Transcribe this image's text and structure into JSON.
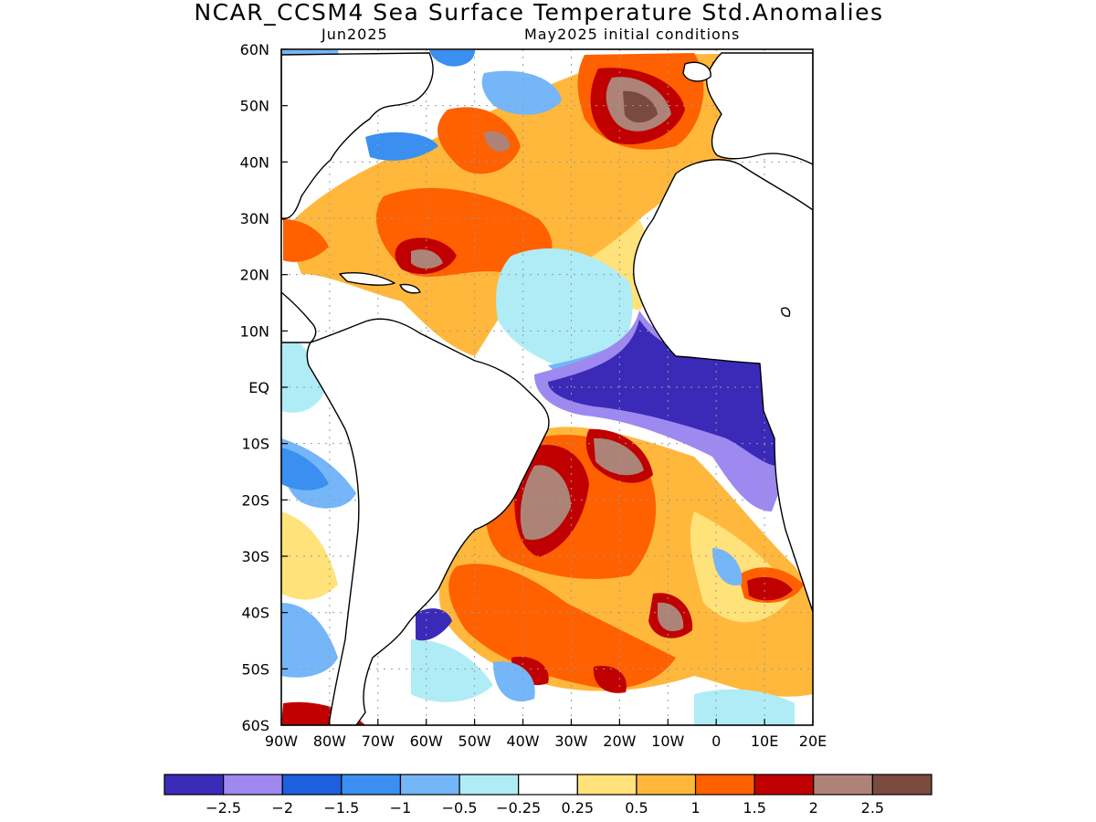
{
  "title": "NCAR_CCSM4 Sea Surface Temperature Std.Anomalies",
  "subtitle_left": "Jun2025",
  "subtitle_right": "May2025 initial conditions",
  "map": {
    "region": "Atlantic Ocean",
    "lon_range": [
      -90,
      20
    ],
    "lat_range": [
      -60,
      60
    ],
    "lon_ticks": [
      {
        "lon": -90,
        "label": "90W"
      },
      {
        "lon": -80,
        "label": "80W"
      },
      {
        "lon": -70,
        "label": "70W"
      },
      {
        "lon": -60,
        "label": "60W"
      },
      {
        "lon": -50,
        "label": "50W"
      },
      {
        "lon": -40,
        "label": "40W"
      },
      {
        "lon": -30,
        "label": "30W"
      },
      {
        "lon": -20,
        "label": "20W"
      },
      {
        "lon": -10,
        "label": "10W"
      },
      {
        "lon": 0,
        "label": "0"
      },
      {
        "lon": 10,
        "label": "10E"
      },
      {
        "lon": 20,
        "label": "20E"
      }
    ],
    "lat_ticks": [
      {
        "lat": 60,
        "label": "60N"
      },
      {
        "lat": 50,
        "label": "50N"
      },
      {
        "lat": 40,
        "label": "40N"
      },
      {
        "lat": 30,
        "label": "30N"
      },
      {
        "lat": 20,
        "label": "20N"
      },
      {
        "lat": 10,
        "label": "10N"
      },
      {
        "lat": 0,
        "label": "EQ"
      },
      {
        "lat": -10,
        "label": "10S"
      },
      {
        "lat": -20,
        "label": "20S"
      },
      {
        "lat": -30,
        "label": "30S"
      },
      {
        "lat": -40,
        "label": "40S"
      },
      {
        "lat": -50,
        "label": "50S"
      },
      {
        "lat": -60,
        "label": "60S"
      }
    ],
    "land_color": "#ffffff",
    "gridlines": "dotted"
  },
  "colorbar": {
    "colors": [
      "#3b2ab8",
      "#9d89f0",
      "#1e5fe0",
      "#3a8ff0",
      "#74b6f8",
      "#b0ecf6",
      "#ffffff",
      "#ffe27a",
      "#ffb83c",
      "#ff6000",
      "#c00000",
      "#ad8378",
      "#7a4a3e"
    ],
    "labels": [
      "−2.5",
      "−2",
      "−1.5",
      "−1",
      "−0.5",
      "−0.25",
      "0.25",
      "0.5",
      "1",
      "1.5",
      "2",
      "2.5"
    ]
  }
}
